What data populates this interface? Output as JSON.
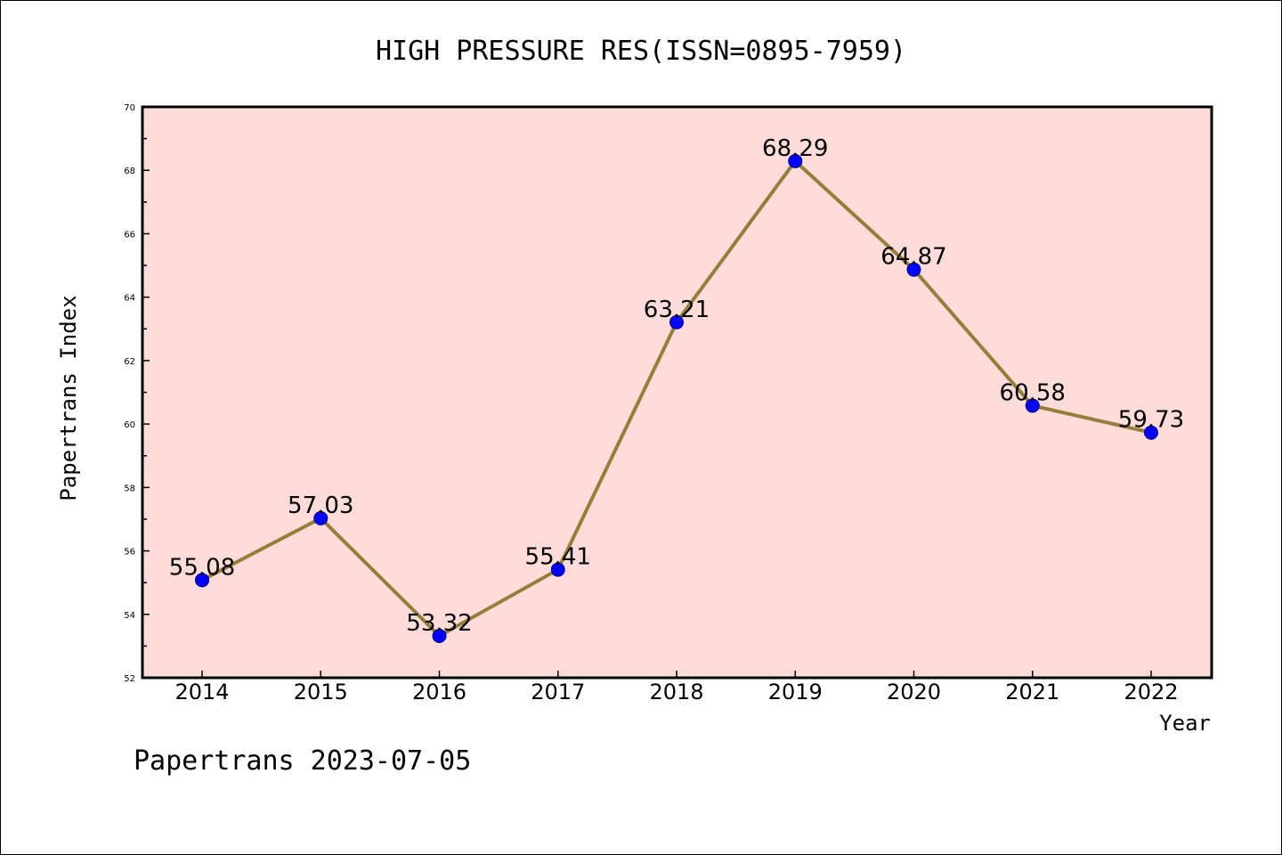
{
  "chart_data": {
    "type": "line",
    "title": "HIGH PRESSURE RES(ISSN=0895-7959)",
    "xlabel": "Year",
    "ylabel": "Papertrans Index",
    "categories": [
      "2014",
      "2015",
      "2016",
      "2017",
      "2018",
      "2019",
      "2020",
      "2021",
      "2022"
    ],
    "series": [
      {
        "values": [
          55.08,
          57.03,
          53.32,
          55.41,
          63.21,
          68.29,
          64.87,
          60.58,
          59.73
        ],
        "labels": [
          "55.08",
          "57.03",
          "53.32",
          "55.41",
          "63.21",
          "68.29",
          "64.87",
          "60.58",
          "59.73"
        ]
      }
    ],
    "ylim": [
      52,
      70
    ],
    "yticks": [
      "52",
      "54",
      "56",
      "58",
      "60",
      "62",
      "64",
      "66",
      "68",
      "70"
    ],
    "grid": false,
    "legend": "none",
    "colors": {
      "plot_background": "#ffdcd9",
      "line": "#947f3a",
      "marker": "#0000ff"
    }
  },
  "footer": "Papertrans 2023-07-05"
}
